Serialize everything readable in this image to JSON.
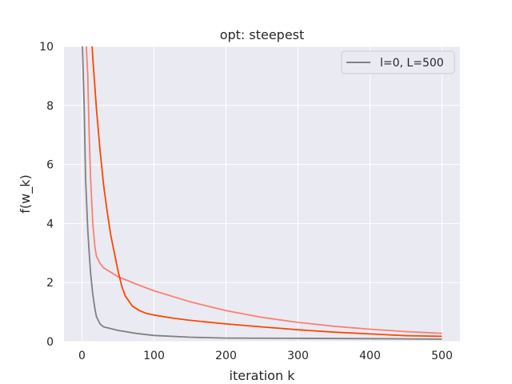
{
  "chart_data": {
    "type": "line",
    "title": "opt: steepest",
    "xlabel": "iteration k",
    "ylabel": "f(w_k)",
    "xlim": [
      -25,
      525
    ],
    "ylim": [
      0,
      10
    ],
    "xticks": [
      0,
      100,
      200,
      300,
      400,
      500
    ],
    "yticks": [
      0,
      2,
      4,
      6,
      8,
      10
    ],
    "grid": true,
    "background": "#eaeaf2",
    "legend": {
      "placement": "top-right",
      "entries": [
        "l=0, L=500"
      ]
    },
    "series": [
      {
        "name": "l=0, L=500",
        "color": "#808080",
        "x": [
          0,
          3,
          5,
          8,
          10,
          12,
          15,
          18,
          20,
          25,
          30,
          40,
          50,
          75,
          100,
          150,
          200,
          300,
          400,
          500
        ],
        "y": [
          10.5,
          8.0,
          5.5,
          3.8,
          3.0,
          2.3,
          1.6,
          1.1,
          0.85,
          0.6,
          0.5,
          0.44,
          0.38,
          0.28,
          0.21,
          0.15,
          0.12,
          0.11,
          0.1,
          0.08
        ]
      },
      {
        "color": "#fa8072",
        "x": [
          5,
          8,
          10,
          12,
          15,
          18,
          20,
          25,
          30,
          40,
          50,
          75,
          100,
          150,
          200,
          250,
          300,
          350,
          400,
          450,
          500
        ],
        "y": [
          10.5,
          9.0,
          7.0,
          5.5,
          4.0,
          3.2,
          2.9,
          2.65,
          2.5,
          2.35,
          2.2,
          1.95,
          1.72,
          1.35,
          1.05,
          0.82,
          0.65,
          0.52,
          0.42,
          0.34,
          0.28
        ]
      },
      {
        "color": "#ff4500",
        "x": [
          13,
          15,
          18,
          20,
          25,
          30,
          35,
          40,
          45,
          50,
          55,
          60,
          70,
          80,
          90,
          100,
          125,
          150,
          200,
          250,
          300,
          350,
          400,
          450,
          500
        ],
        "y": [
          10.5,
          9.6,
          8.6,
          7.9,
          6.5,
          5.3,
          4.4,
          3.6,
          3.0,
          2.4,
          1.9,
          1.55,
          1.2,
          1.05,
          0.95,
          0.9,
          0.8,
          0.72,
          0.6,
          0.5,
          0.4,
          0.32,
          0.26,
          0.2,
          0.18
        ]
      }
    ]
  }
}
